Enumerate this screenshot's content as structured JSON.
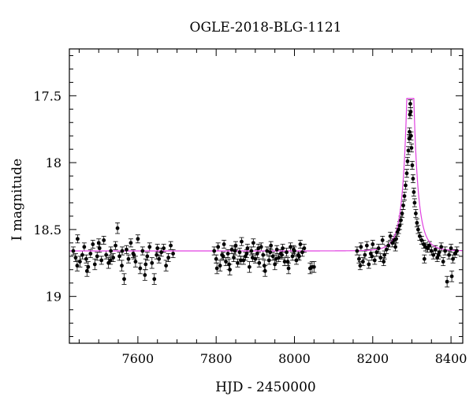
{
  "chart_data": {
    "type": "scatter",
    "title": "OGLE-2018-BLG-1121",
    "xlabel": "HJD - 2450000",
    "ylabel": "I magnitude",
    "xlim": [
      7425,
      8430
    ],
    "ylim": [
      19.35,
      17.15
    ],
    "y_inverted": true,
    "grid": false,
    "x_ticks": [
      7600,
      7800,
      8000,
      8200,
      8400
    ],
    "x_tick_labels": [
      "7600",
      "7800",
      "8000",
      "8200",
      "8400"
    ],
    "y_ticks": [
      17.5,
      18,
      18.5,
      19
    ],
    "y_tick_labels": [
      "17.5",
      "18",
      "18.5",
      "19"
    ],
    "x_minor_step": 50,
    "y_minor_step": 0.1,
    "baseline_mag": 18.66,
    "model": {
      "type": "point-lens",
      "color": "#e040e0",
      "t0": 8296,
      "u0": 0.074,
      "tE": 25,
      "baseline": 18.66,
      "peak_mag": 17.52
    },
    "points_color": "#000000",
    "series": [
      {
        "x": [
          7435,
          7441,
          7446,
          7452,
          7458,
          7463,
          7468,
          7473,
          7479,
          7485,
          7490,
          7496,
          7502,
          7507,
          7513,
          7519,
          7525,
          7531,
          7537,
          7543,
          7548,
          7553,
          7559,
          7565,
          7571,
          7576,
          7582,
          7588,
          7594,
          7600,
          7606,
          7612,
          7618,
          7624,
          7630,
          7636,
          7642,
          7648,
          7654,
          7660,
          7666,
          7672,
          7678,
          7684,
          7690,
          7445,
          7470,
          7500,
          7530,
          7560,
          7590,
          7620,
          7650
        ],
        "y": [
          18.66,
          18.71,
          18.57,
          18.74,
          18.69,
          18.63,
          18.72,
          18.78,
          18.68,
          18.61,
          18.76,
          18.7,
          18.64,
          18.73,
          18.58,
          18.69,
          18.75,
          18.66,
          18.71,
          18.62,
          18.49,
          18.7,
          18.77,
          18.87,
          18.65,
          18.72,
          18.6,
          18.68,
          18.74,
          18.57,
          18.79,
          18.66,
          18.84,
          18.7,
          18.63,
          18.75,
          18.87,
          18.69,
          18.72,
          18.67,
          18.64,
          18.77,
          18.71,
          18.62,
          18.68,
          18.77,
          18.81,
          18.6,
          18.73,
          18.66,
          18.69,
          18.76,
          18.64
        ],
        "err": [
          0.03,
          0.03,
          0.03,
          0.04,
          0.03,
          0.03,
          0.03,
          0.04,
          0.03,
          0.03,
          0.04,
          0.03,
          0.03,
          0.03,
          0.03,
          0.03,
          0.04,
          0.03,
          0.03,
          0.03,
          0.04,
          0.03,
          0.04,
          0.04,
          0.03,
          0.03,
          0.03,
          0.03,
          0.04,
          0.03,
          0.04,
          0.03,
          0.04,
          0.03,
          0.03,
          0.04,
          0.04,
          0.03,
          0.03,
          0.03,
          0.03,
          0.04,
          0.03,
          0.03,
          0.03,
          0.04,
          0.04,
          0.03,
          0.03,
          0.03,
          0.03,
          0.04,
          0.03
        ]
      },
      {
        "x": [
          7795,
          7800,
          7805,
          7810,
          7815,
          7820,
          7825,
          7830,
          7835,
          7840,
          7845,
          7850,
          7855,
          7860,
          7865,
          7870,
          7875,
          7880,
          7885,
          7890,
          7895,
          7900,
          7905,
          7910,
          7915,
          7920,
          7925,
          7930,
          7935,
          7940,
          7945,
          7950,
          7955,
          7960,
          7965,
          7970,
          7975,
          7980,
          7985,
          7990,
          7995,
          8000,
          8005,
          8010,
          8015,
          8020,
          8025,
          7802,
          7818,
          7833,
          7848,
          7863,
          7878,
          7893,
          7908,
          7923,
          7938,
          7953,
          7968,
          7983,
          7998,
          8012,
          8040,
          8045,
          8050
        ],
        "y": [
          18.66,
          18.72,
          18.63,
          18.77,
          18.69,
          18.61,
          18.74,
          18.68,
          18.8,
          18.65,
          18.71,
          18.62,
          18.75,
          18.67,
          18.59,
          18.73,
          18.7,
          18.64,
          18.78,
          18.66,
          18.6,
          18.72,
          18.68,
          18.75,
          18.63,
          18.69,
          18.81,
          18.66,
          18.73,
          18.62,
          18.7,
          18.76,
          18.65,
          18.71,
          18.68,
          18.64,
          18.74,
          18.67,
          18.79,
          18.63,
          18.7,
          18.66,
          18.73,
          18.69,
          18.61,
          18.67,
          18.64,
          18.79,
          18.7,
          18.76,
          18.66,
          18.73,
          18.68,
          18.71,
          18.64,
          18.77,
          18.67,
          18.72,
          18.69,
          18.74,
          18.65,
          18.7,
          18.79,
          18.78,
          18.78
        ],
        "err": [
          0.03,
          0.03,
          0.03,
          0.04,
          0.03,
          0.03,
          0.03,
          0.03,
          0.04,
          0.03,
          0.03,
          0.03,
          0.03,
          0.03,
          0.03,
          0.03,
          0.03,
          0.03,
          0.04,
          0.03,
          0.03,
          0.03,
          0.03,
          0.03,
          0.03,
          0.03,
          0.04,
          0.03,
          0.03,
          0.03,
          0.03,
          0.04,
          0.03,
          0.03,
          0.03,
          0.03,
          0.03,
          0.03,
          0.04,
          0.03,
          0.03,
          0.03,
          0.03,
          0.03,
          0.03,
          0.03,
          0.03,
          0.04,
          0.03,
          0.04,
          0.03,
          0.03,
          0.03,
          0.03,
          0.03,
          0.04,
          0.03,
          0.03,
          0.03,
          0.03,
          0.03,
          0.03,
          0.04,
          0.04,
          0.04
        ]
      },
      {
        "x": [
          8160,
          8165,
          8170,
          8175,
          8180,
          8185,
          8190,
          8195,
          8200,
          8205,
          8210,
          8215,
          8220,
          8225,
          8230,
          8235,
          8240,
          8245,
          8250,
          8255,
          8260,
          8263,
          8266,
          8269,
          8272,
          8275,
          8278,
          8281,
          8284,
          8287,
          8289,
          8291,
          8293,
          8294,
          8295,
          8296,
          8297,
          8298,
          8299,
          8301,
          8303,
          8305,
          8307,
          8310,
          8313,
          8316,
          8320,
          8325,
          8330,
          8335,
          8340,
          8345,
          8350,
          8355,
          8360,
          8365,
          8370,
          8375,
          8380,
          8385,
          8390,
          8395,
          8400,
          8405,
          8410,
          8415,
          8168,
          8198,
          8228,
          8258,
          8332,
          8368,
          8402
        ],
        "y": [
          18.66,
          18.72,
          18.63,
          18.74,
          18.69,
          18.62,
          18.76,
          18.68,
          18.61,
          18.73,
          18.67,
          18.64,
          18.71,
          18.58,
          18.69,
          18.65,
          18.62,
          18.55,
          18.6,
          18.58,
          18.57,
          18.52,
          18.5,
          18.47,
          18.43,
          18.38,
          18.32,
          18.25,
          18.17,
          18.08,
          17.99,
          17.91,
          17.82,
          17.77,
          17.64,
          17.56,
          17.62,
          17.8,
          17.89,
          18.02,
          18.12,
          18.22,
          18.3,
          18.38,
          18.45,
          18.5,
          18.55,
          18.58,
          18.61,
          18.63,
          18.64,
          18.62,
          18.66,
          18.69,
          18.65,
          18.71,
          18.67,
          18.63,
          18.74,
          18.66,
          18.89,
          18.69,
          18.64,
          18.72,
          18.68,
          18.66,
          18.77,
          18.7,
          18.74,
          18.63,
          18.72,
          18.69,
          18.85
        ],
        "err": [
          0.03,
          0.03,
          0.03,
          0.03,
          0.03,
          0.03,
          0.03,
          0.03,
          0.03,
          0.03,
          0.03,
          0.03,
          0.03,
          0.03,
          0.03,
          0.03,
          0.03,
          0.03,
          0.03,
          0.03,
          0.03,
          0.03,
          0.03,
          0.03,
          0.03,
          0.03,
          0.03,
          0.03,
          0.03,
          0.03,
          0.03,
          0.03,
          0.03,
          0.03,
          0.03,
          0.03,
          0.03,
          0.03,
          0.03,
          0.03,
          0.03,
          0.03,
          0.03,
          0.03,
          0.03,
          0.03,
          0.03,
          0.03,
          0.03,
          0.03,
          0.03,
          0.03,
          0.03,
          0.03,
          0.03,
          0.03,
          0.03,
          0.03,
          0.03,
          0.03,
          0.04,
          0.03,
          0.03,
          0.03,
          0.03,
          0.03,
          0.03,
          0.03,
          0.03,
          0.03,
          0.03,
          0.03,
          0.04
        ]
      }
    ]
  }
}
